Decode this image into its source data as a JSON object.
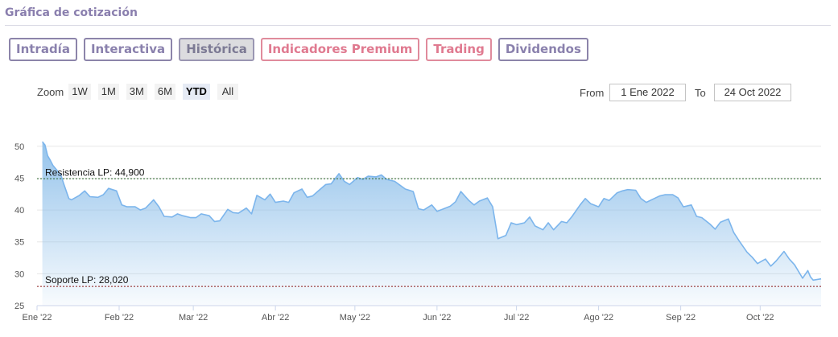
{
  "header": {
    "title": "Gráfica de cotización"
  },
  "tabs": [
    {
      "label": "Intradía",
      "state": "normal"
    },
    {
      "label": "Interactiva",
      "state": "normal"
    },
    {
      "label": "Histórica",
      "state": "active"
    },
    {
      "label": "Indicadores Premium",
      "state": "premium"
    },
    {
      "label": "Trading",
      "state": "premium"
    },
    {
      "label": "Dividendos",
      "state": "normal"
    }
  ],
  "zoom": {
    "label": "Zoom",
    "buttons": [
      "1W",
      "1M",
      "3M",
      "6M",
      "YTD",
      "All"
    ],
    "selected": "YTD"
  },
  "range": {
    "from_label": "From",
    "from_value": "1 Ene 2022",
    "to_label": "To",
    "to_value": "24 Oct 2022"
  },
  "colors": {
    "line": "#7cb5ec",
    "area_top": "#8fc0ea",
    "resistance": "#2e6b2e",
    "support": "#8b1a1a",
    "grid": "#e6e6e6"
  },
  "chart_data": {
    "type": "area",
    "ylim": [
      25,
      52
    ],
    "yticks": [
      25,
      30,
      35,
      40,
      45,
      50
    ],
    "xlim": [
      "2022-01-01",
      "2022-10-24"
    ],
    "xticks": [
      {
        "label": "Ene '22",
        "date": "2022-01-01"
      },
      {
        "label": "Feb '22",
        "date": "2022-02-01"
      },
      {
        "label": "Mar '22",
        "date": "2022-03-01"
      },
      {
        "label": "Abr '22",
        "date": "2022-04-01"
      },
      {
        "label": "May '22",
        "date": "2022-05-01"
      },
      {
        "label": "Jun '22",
        "date": "2022-06-01"
      },
      {
        "label": "Jul '22",
        "date": "2022-07-01"
      },
      {
        "label": "Ago '22",
        "date": "2022-08-01"
      },
      {
        "label": "Sep '22",
        "date": "2022-09-01"
      },
      {
        "label": "Oct '22",
        "date": "2022-10-01"
      }
    ],
    "grid": true,
    "reference_lines": [
      {
        "label": "Resistencia LP: 44,900",
        "value": 44.9,
        "kind": "resistance"
      },
      {
        "label": "Soporte LP: 28,020",
        "value": 28.02,
        "kind": "support"
      }
    ],
    "series": [
      {
        "points": [
          [
            "2022-01-03",
            50.7
          ],
          [
            "2022-01-04",
            50.2
          ],
          [
            "2022-01-05",
            48.5
          ],
          [
            "2022-01-06",
            47.8
          ],
          [
            "2022-01-07",
            47.0
          ],
          [
            "2022-01-10",
            45.5
          ],
          [
            "2022-01-11",
            44.2
          ],
          [
            "2022-01-13",
            41.8
          ],
          [
            "2022-01-14",
            41.6
          ],
          [
            "2022-01-17",
            42.3
          ],
          [
            "2022-01-19",
            43.0
          ],
          [
            "2022-01-21",
            42.1
          ],
          [
            "2022-01-24",
            42.0
          ],
          [
            "2022-01-26",
            42.4
          ],
          [
            "2022-01-28",
            43.4
          ],
          [
            "2022-01-31",
            43.0
          ],
          [
            "2022-02-02",
            40.8
          ],
          [
            "2022-02-04",
            40.5
          ],
          [
            "2022-02-07",
            40.5
          ],
          [
            "2022-02-09",
            40.0
          ],
          [
            "2022-02-11",
            40.3
          ],
          [
            "2022-02-14",
            41.6
          ],
          [
            "2022-02-16",
            40.5
          ],
          [
            "2022-02-18",
            39.0
          ],
          [
            "2022-02-21",
            38.9
          ],
          [
            "2022-02-23",
            39.4
          ],
          [
            "2022-02-25",
            39.1
          ],
          [
            "2022-02-28",
            38.8
          ],
          [
            "2022-03-02",
            38.8
          ],
          [
            "2022-03-04",
            39.4
          ],
          [
            "2022-03-07",
            39.1
          ],
          [
            "2022-03-09",
            38.2
          ],
          [
            "2022-03-11",
            38.3
          ],
          [
            "2022-03-14",
            40.1
          ],
          [
            "2022-03-16",
            39.6
          ],
          [
            "2022-03-18",
            39.5
          ],
          [
            "2022-03-21",
            40.3
          ],
          [
            "2022-03-23",
            39.4
          ],
          [
            "2022-03-25",
            42.3
          ],
          [
            "2022-03-28",
            41.6
          ],
          [
            "2022-03-30",
            42.5
          ],
          [
            "2022-04-01",
            41.2
          ],
          [
            "2022-04-04",
            41.4
          ],
          [
            "2022-04-06",
            41.2
          ],
          [
            "2022-04-08",
            42.7
          ],
          [
            "2022-04-11",
            43.3
          ],
          [
            "2022-04-13",
            42.0
          ],
          [
            "2022-04-15",
            42.2
          ],
          [
            "2022-04-18",
            43.3
          ],
          [
            "2022-04-20",
            44.0
          ],
          [
            "2022-04-22",
            44.1
          ],
          [
            "2022-04-25",
            45.7
          ],
          [
            "2022-04-27",
            44.5
          ],
          [
            "2022-04-29",
            44.0
          ],
          [
            "2022-05-02",
            45.1
          ],
          [
            "2022-05-04",
            44.8
          ],
          [
            "2022-05-06",
            45.3
          ],
          [
            "2022-05-09",
            45.2
          ],
          [
            "2022-05-11",
            45.5
          ],
          [
            "2022-05-13",
            44.8
          ],
          [
            "2022-05-16",
            44.5
          ],
          [
            "2022-05-18",
            43.9
          ],
          [
            "2022-05-20",
            43.3
          ],
          [
            "2022-05-23",
            42.9
          ],
          [
            "2022-05-25",
            40.2
          ],
          [
            "2022-05-27",
            40.0
          ],
          [
            "2022-05-30",
            40.8
          ],
          [
            "2022-06-01",
            39.8
          ],
          [
            "2022-06-03",
            40.1
          ],
          [
            "2022-06-06",
            40.6
          ],
          [
            "2022-06-08",
            41.3
          ],
          [
            "2022-06-10",
            42.9
          ],
          [
            "2022-06-13",
            41.5
          ],
          [
            "2022-06-15",
            40.8
          ],
          [
            "2022-06-17",
            41.4
          ],
          [
            "2022-06-20",
            41.9
          ],
          [
            "2022-06-22",
            40.5
          ],
          [
            "2022-06-24",
            35.5
          ],
          [
            "2022-06-27",
            36.0
          ],
          [
            "2022-06-29",
            38.0
          ],
          [
            "2022-07-01",
            37.7
          ],
          [
            "2022-07-04",
            38.0
          ],
          [
            "2022-07-06",
            38.9
          ],
          [
            "2022-07-08",
            37.5
          ],
          [
            "2022-07-11",
            36.9
          ],
          [
            "2022-07-13",
            38.0
          ],
          [
            "2022-07-15",
            36.9
          ],
          [
            "2022-07-18",
            38.2
          ],
          [
            "2022-07-20",
            38.0
          ],
          [
            "2022-07-22",
            39.0
          ],
          [
            "2022-07-25",
            40.8
          ],
          [
            "2022-07-27",
            41.8
          ],
          [
            "2022-07-29",
            41.0
          ],
          [
            "2022-08-01",
            40.5
          ],
          [
            "2022-08-03",
            41.8
          ],
          [
            "2022-08-05",
            41.5
          ],
          [
            "2022-08-08",
            42.7
          ],
          [
            "2022-08-10",
            43.0
          ],
          [
            "2022-08-12",
            43.2
          ],
          [
            "2022-08-15",
            43.1
          ],
          [
            "2022-08-17",
            41.8
          ],
          [
            "2022-08-19",
            41.2
          ],
          [
            "2022-08-22",
            41.8
          ],
          [
            "2022-08-24",
            42.2
          ],
          [
            "2022-08-26",
            42.4
          ],
          [
            "2022-08-29",
            42.4
          ],
          [
            "2022-08-31",
            41.9
          ],
          [
            "2022-09-02",
            40.5
          ],
          [
            "2022-09-05",
            40.8
          ],
          [
            "2022-09-07",
            39.0
          ],
          [
            "2022-09-09",
            38.8
          ],
          [
            "2022-09-12",
            37.8
          ],
          [
            "2022-09-14",
            37.0
          ],
          [
            "2022-09-16",
            38.1
          ],
          [
            "2022-09-19",
            38.6
          ],
          [
            "2022-09-21",
            36.5
          ],
          [
            "2022-09-23",
            35.2
          ],
          [
            "2022-09-26",
            33.4
          ],
          [
            "2022-09-28",
            32.6
          ],
          [
            "2022-09-30",
            31.6
          ],
          [
            "2022-10-03",
            32.3
          ],
          [
            "2022-10-05",
            31.2
          ],
          [
            "2022-10-07",
            32.0
          ],
          [
            "2022-10-10",
            33.5
          ],
          [
            "2022-10-12",
            32.3
          ],
          [
            "2022-10-14",
            31.4
          ],
          [
            "2022-10-17",
            29.3
          ],
          [
            "2022-10-19",
            30.5
          ],
          [
            "2022-10-20",
            29.5
          ],
          [
            "2022-10-21",
            29.0
          ],
          [
            "2022-10-24",
            29.2
          ]
        ]
      }
    ]
  }
}
